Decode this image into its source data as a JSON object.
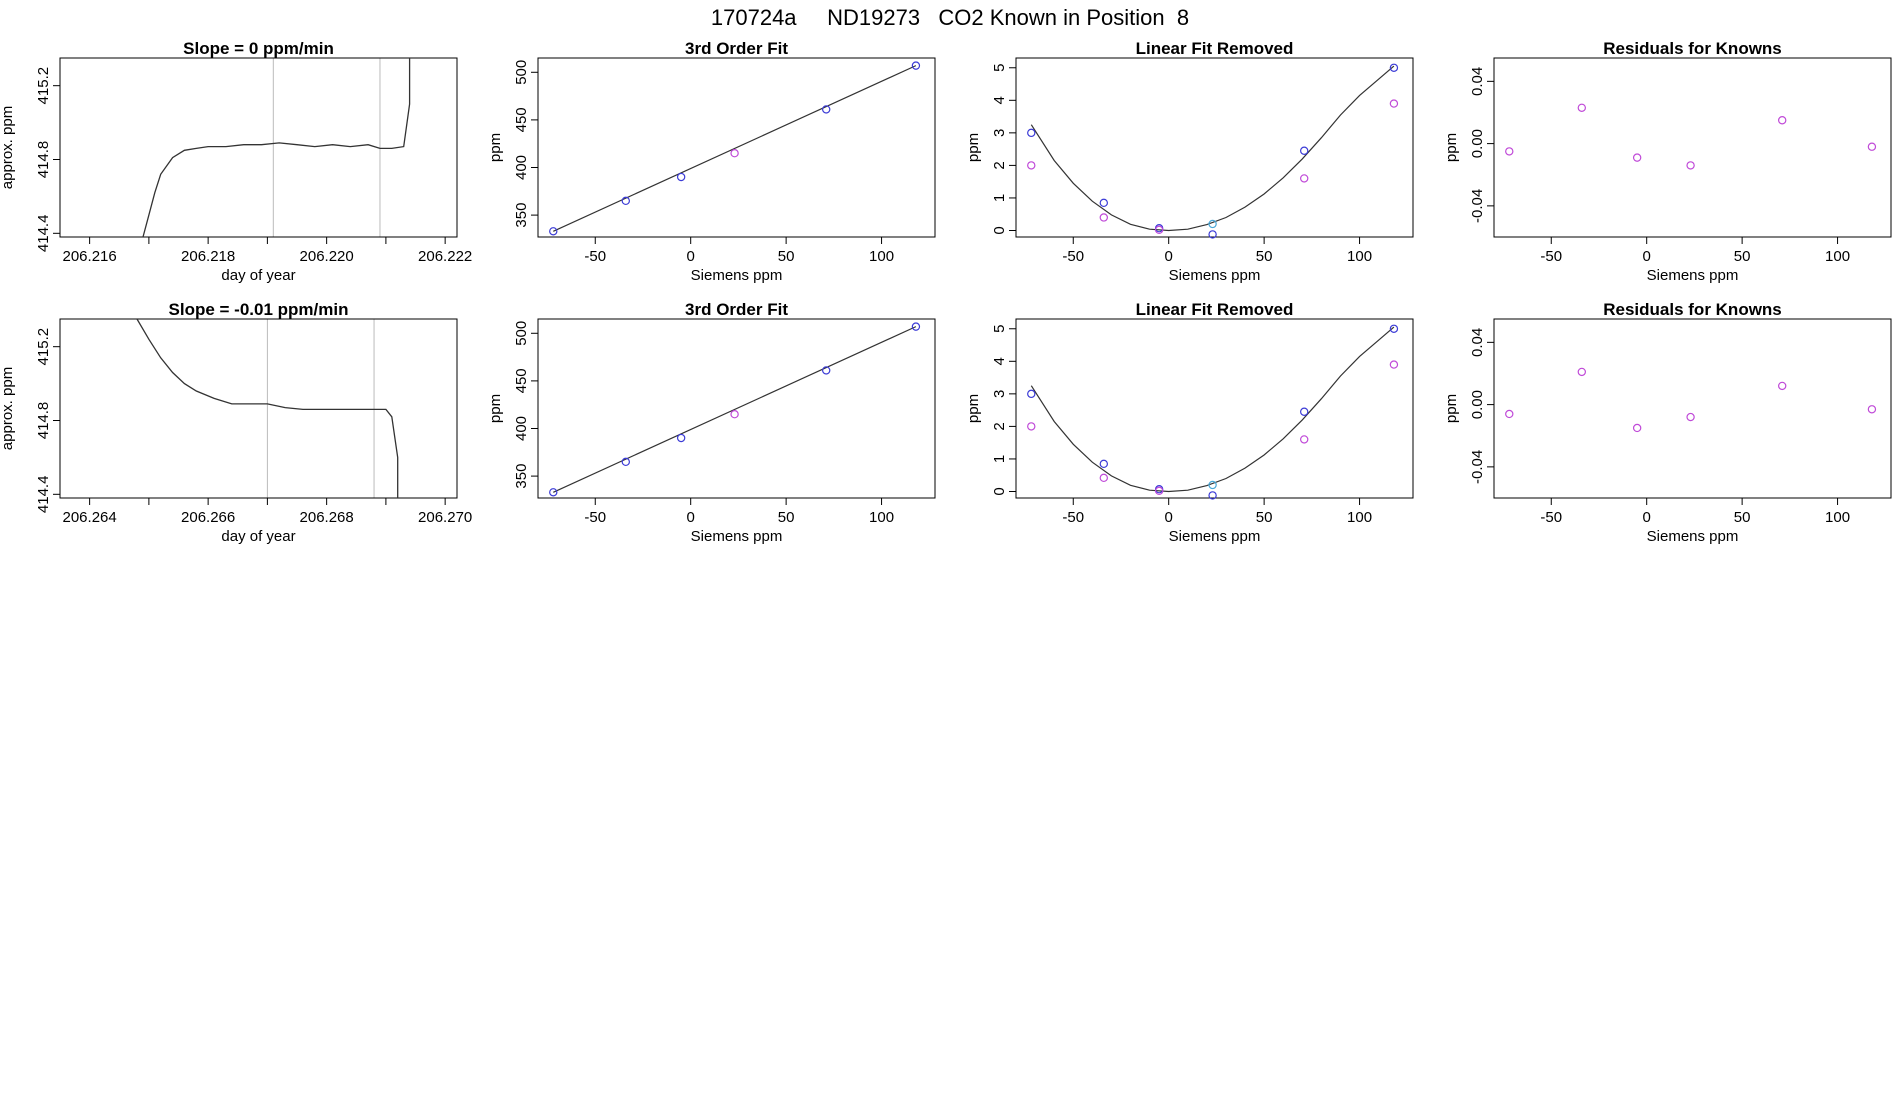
{
  "page": {
    "title": "170724a     ND19273   CO2 Known in Position  8"
  },
  "colors": {
    "axis": "#000000",
    "line": "#333333",
    "vline": "#bbbbbb",
    "point_blue": "#3b3bd6",
    "point_magenta": "#c04ad8",
    "point_cyan": "#4aa8d8",
    "highlight_red": "#e04040"
  },
  "chart_data": [
    {
      "id": "r1c1",
      "type": "line",
      "title": "Slope =  0  ppm/min",
      "xlabel": "day of year",
      "ylabel": "approx. ppm",
      "xlim": [
        206.2155,
        206.2222
      ],
      "ylim": [
        414.38,
        415.35
      ],
      "xticks": [
        206.216,
        206.218,
        206.22,
        206.222
      ],
      "xticklabels": [
        "206.216",
        "206.218",
        "206.220",
        "206.222"
      ],
      "xminor": [
        206.217,
        206.219,
        206.221
      ],
      "yticks": [
        414.4,
        414.8,
        415.2
      ],
      "yticklabels": [
        "414.4",
        "414.8",
        "415.2"
      ],
      "vlines": [
        206.2191,
        206.2209
      ],
      "series_x": [
        206.2169,
        206.217,
        206.2171,
        206.2172,
        206.2174,
        206.2176,
        206.2178,
        206.218,
        206.2183,
        206.2186,
        206.2189,
        206.2192,
        206.2195,
        206.2198,
        206.2201,
        206.2204,
        206.2207,
        206.2209,
        206.2211,
        206.2213,
        206.2214,
        206.2214
      ],
      "series_y": [
        414.38,
        414.5,
        414.62,
        414.72,
        414.81,
        414.85,
        414.86,
        414.87,
        414.87,
        414.88,
        414.88,
        414.89,
        414.88,
        414.87,
        414.88,
        414.87,
        414.88,
        414.86,
        414.86,
        414.87,
        415.1,
        415.35
      ]
    },
    {
      "id": "r2c1",
      "type": "line",
      "title": "Slope =  -0.01  ppm/min",
      "xlabel": "day of year",
      "ylabel": "approx. ppm",
      "xlim": [
        206.2635,
        206.2702
      ],
      "ylim": [
        414.38,
        415.35
      ],
      "xticks": [
        206.264,
        206.266,
        206.268,
        206.27
      ],
      "xticklabels": [
        "206.264",
        "206.266",
        "206.268",
        "206.270"
      ],
      "xminor": [
        206.265,
        206.267,
        206.269
      ],
      "yticks": [
        414.4,
        414.8,
        415.2
      ],
      "yticklabels": [
        "414.4",
        "414.8",
        "415.2"
      ],
      "vlines": [
        206.267,
        206.2688
      ],
      "series_x": [
        206.2648,
        206.265,
        206.2652,
        206.2654,
        206.2656,
        206.2658,
        206.2661,
        206.2664,
        206.2667,
        206.267,
        206.2673,
        206.2676,
        206.2679,
        206.2682,
        206.2685,
        206.2688,
        206.269,
        206.2691,
        206.2692,
        206.2692
      ],
      "series_y": [
        415.35,
        415.24,
        415.14,
        415.06,
        415.0,
        414.96,
        414.92,
        414.89,
        414.89,
        414.89,
        414.87,
        414.86,
        414.86,
        414.86,
        414.86,
        414.86,
        414.86,
        414.82,
        414.6,
        414.38
      ]
    },
    {
      "id": "r1c2",
      "type": "scatter",
      "title": "3rd Order Fit",
      "xlabel": "Siemens ppm",
      "ylabel": "ppm",
      "xlim": [
        -80,
        128
      ],
      "ylim": [
        327,
        515
      ],
      "xticks": [
        -50,
        0,
        50,
        100
      ],
      "xticklabels": [
        "-50",
        "0",
        "50",
        "100"
      ],
      "yticks": [
        350,
        400,
        450,
        500
      ],
      "yticklabels": [
        "350",
        "400",
        "450",
        "500"
      ],
      "fit_line": [
        [
          -72,
          333
        ],
        [
          118,
          507
        ]
      ],
      "points": [
        {
          "x": -72,
          "y": 333,
          "color": "blue"
        },
        {
          "x": -34,
          "y": 365,
          "color": "blue"
        },
        {
          "x": -5,
          "y": 390,
          "color": "blue"
        },
        {
          "x": 23,
          "y": 415,
          "color": "magenta"
        },
        {
          "x": 71,
          "y": 461,
          "color": "blue"
        },
        {
          "x": 118,
          "y": 507,
          "color": "blue"
        }
      ]
    },
    {
      "id": "r2c2",
      "type": "scatter",
      "title": "3rd Order Fit",
      "xlabel": "Siemens ppm",
      "ylabel": "ppm",
      "xlim": [
        -80,
        128
      ],
      "ylim": [
        327,
        515
      ],
      "xticks": [
        -50,
        0,
        50,
        100
      ],
      "xticklabels": [
        "-50",
        "0",
        "50",
        "100"
      ],
      "yticks": [
        350,
        400,
        450,
        500
      ],
      "yticklabels": [
        "350",
        "400",
        "450",
        "500"
      ],
      "fit_line": [
        [
          -72,
          333
        ],
        [
          118,
          507
        ]
      ],
      "points": [
        {
          "x": -72,
          "y": 333,
          "color": "blue"
        },
        {
          "x": -34,
          "y": 365,
          "color": "blue"
        },
        {
          "x": -5,
          "y": 390,
          "color": "blue"
        },
        {
          "x": 23,
          "y": 415,
          "color": "magenta"
        },
        {
          "x": 71,
          "y": 461,
          "color": "blue"
        },
        {
          "x": 118,
          "y": 507,
          "color": "blue"
        }
      ]
    },
    {
      "id": "r1c3",
      "type": "scatter",
      "title": "Linear Fit Removed",
      "xlabel": "Siemens ppm",
      "ylabel": "ppm",
      "xlim": [
        -80,
        128
      ],
      "ylim": [
        -0.2,
        5.3
      ],
      "xticks": [
        -50,
        0,
        50,
        100
      ],
      "xticklabels": [
        "-50",
        "0",
        "50",
        "100"
      ],
      "yticks": [
        0,
        1,
        2,
        3,
        4,
        5
      ],
      "yticklabels": [
        "0",
        "1",
        "2",
        "3",
        "4",
        "5"
      ],
      "curve_x": [
        -72,
        -60,
        -50,
        -40,
        -30,
        -20,
        -10,
        0,
        10,
        20,
        30,
        40,
        50,
        60,
        70,
        80,
        90,
        100,
        110,
        118
      ],
      "curve_y": [
        3.25,
        2.15,
        1.45,
        0.9,
        0.48,
        0.19,
        0.04,
        0.0,
        0.04,
        0.18,
        0.4,
        0.72,
        1.12,
        1.62,
        2.2,
        2.85,
        3.55,
        4.15,
        4.65,
        5.05
      ],
      "points": [
        {
          "x": -72,
          "y": 3.0,
          "color": "blue"
        },
        {
          "x": -72,
          "y": 2.0,
          "color": "magenta"
        },
        {
          "x": -34,
          "y": 0.85,
          "color": "blue"
        },
        {
          "x": -34,
          "y": 0.4,
          "color": "magenta"
        },
        {
          "x": -5,
          "y": 0.07,
          "color": "blue"
        },
        {
          "x": -5,
          "y": 0.02,
          "color": "magenta"
        },
        {
          "x": 23,
          "y": 0.2,
          "color": "cyan"
        },
        {
          "x": 23,
          "y": -0.12,
          "color": "blue"
        },
        {
          "x": 71,
          "y": 2.45,
          "color": "blue"
        },
        {
          "x": 71,
          "y": 1.6,
          "color": "magenta"
        },
        {
          "x": 118,
          "y": 5.0,
          "color": "blue"
        },
        {
          "x": 118,
          "y": 3.9,
          "color": "magenta"
        }
      ]
    },
    {
      "id": "r2c3",
      "type": "scatter",
      "title": "Linear Fit Removed",
      "xlabel": "Siemens ppm",
      "ylabel": "ppm",
      "xlim": [
        -80,
        128
      ],
      "ylim": [
        -0.2,
        5.3
      ],
      "xticks": [
        -50,
        0,
        50,
        100
      ],
      "xticklabels": [
        "-50",
        "0",
        "50",
        "100"
      ],
      "yticks": [
        0,
        1,
        2,
        3,
        4,
        5
      ],
      "yticklabels": [
        "0",
        "1",
        "2",
        "3",
        "4",
        "5"
      ],
      "curve_x": [
        -72,
        -60,
        -50,
        -40,
        -30,
        -20,
        -10,
        0,
        10,
        20,
        30,
        40,
        50,
        60,
        70,
        80,
        90,
        100,
        110,
        118
      ],
      "curve_y": [
        3.25,
        2.15,
        1.45,
        0.9,
        0.48,
        0.19,
        0.04,
        0.0,
        0.04,
        0.18,
        0.4,
        0.72,
        1.12,
        1.62,
        2.2,
        2.85,
        3.55,
        4.15,
        4.65,
        5.05
      ],
      "points": [
        {
          "x": -72,
          "y": 3.0,
          "color": "blue"
        },
        {
          "x": -72,
          "y": 2.0,
          "color": "magenta"
        },
        {
          "x": -34,
          "y": 0.85,
          "color": "blue"
        },
        {
          "x": -34,
          "y": 0.42,
          "color": "magenta"
        },
        {
          "x": -5,
          "y": 0.07,
          "color": "blue"
        },
        {
          "x": -5,
          "y": 0.02,
          "color": "magenta"
        },
        {
          "x": 23,
          "y": 0.2,
          "color": "cyan"
        },
        {
          "x": 23,
          "y": -0.12,
          "color": "blue"
        },
        {
          "x": 71,
          "y": 2.45,
          "color": "blue"
        },
        {
          "x": 71,
          "y": 1.6,
          "color": "magenta"
        },
        {
          "x": 118,
          "y": 5.0,
          "color": "blue"
        },
        {
          "x": 118,
          "y": 3.9,
          "color": "magenta"
        }
      ]
    },
    {
      "id": "r1c4",
      "type": "scatter",
      "title": "Residuals for Knowns",
      "xlabel": "Siemens ppm",
      "ylabel": "ppm",
      "xlim": [
        -80,
        128
      ],
      "ylim": [
        -0.06,
        0.055
      ],
      "xticks": [
        -50,
        0,
        50,
        100
      ],
      "xticklabels": [
        "-50",
        "0",
        "50",
        "100"
      ],
      "yticks": [
        -0.04,
        0.0,
        0.04
      ],
      "yticklabels": [
        "-0.04",
        "0.00",
        "0.04"
      ],
      "points": [
        {
          "x": -72,
          "y": -0.005,
          "color": "magenta"
        },
        {
          "x": -34,
          "y": 0.023,
          "color": "magenta"
        },
        {
          "x": -5,
          "y": -0.009,
          "color": "magenta"
        },
        {
          "x": 23,
          "y": -0.014,
          "color": "magenta"
        },
        {
          "x": 71,
          "y": 0.015,
          "color": "magenta"
        },
        {
          "x": 118,
          "y": -0.002,
          "color": "magenta"
        }
      ]
    },
    {
      "id": "r2c4",
      "type": "scatter",
      "title": "Residuals for Knowns",
      "xlabel": "Siemens ppm",
      "ylabel": "ppm",
      "xlim": [
        -80,
        128
      ],
      "ylim": [
        -0.06,
        0.055
      ],
      "xticks": [
        -50,
        0,
        50,
        100
      ],
      "xticklabels": [
        "-50",
        "0",
        "50",
        "100"
      ],
      "yticks": [
        -0.04,
        0.0,
        0.04
      ],
      "yticklabels": [
        "-0.04",
        "0.00",
        "0.04"
      ],
      "points": [
        {
          "x": -72,
          "y": -0.006,
          "color": "magenta"
        },
        {
          "x": -34,
          "y": 0.021,
          "color": "magenta"
        },
        {
          "x": -5,
          "y": -0.015,
          "color": "magenta"
        },
        {
          "x": 23,
          "y": -0.008,
          "color": "magenta"
        },
        {
          "x": 71,
          "y": 0.012,
          "color": "magenta"
        },
        {
          "x": 118,
          "y": -0.003,
          "color": "magenta"
        }
      ]
    }
  ]
}
